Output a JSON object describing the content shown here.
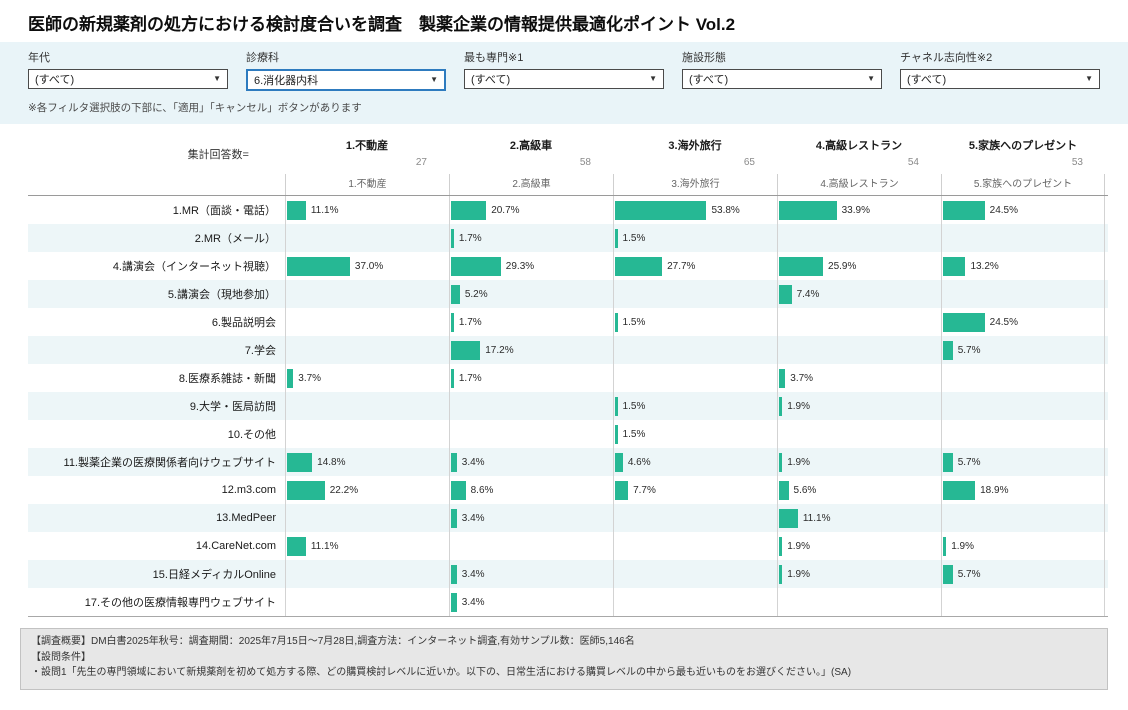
{
  "title": "医師の新規薬剤の処方における検討度合いを調査　製薬企業の情報提供最適化ポイント Vol.2",
  "filters": [
    {
      "label": "年代",
      "value": "(すべて)",
      "active": false
    },
    {
      "label": "診療科",
      "value": "6.消化器内科",
      "active": true
    },
    {
      "label": "最も専門※1",
      "value": "(すべて)",
      "active": false
    },
    {
      "label": "施設形態",
      "value": "(すべて)",
      "active": false
    },
    {
      "label": "チャネル志向性※2",
      "value": "(すべて)",
      "active": false
    }
  ],
  "filters_note": "※各フィルタ選択肢の下部に、「適用」「キャンセル」ボタンがあります",
  "chart_data": {
    "type": "bar",
    "orientation": "horizontal",
    "unit": "%",
    "agg_label": "集計回答数=",
    "xmax": 95,
    "columns": [
      {
        "name": "1.不動産",
        "count": 27
      },
      {
        "name": "2.高級車",
        "count": 58
      },
      {
        "name": "3.海外旅行",
        "count": 65
      },
      {
        "name": "4.高級レストラン",
        "count": 54
      },
      {
        "name": "5.家族へのプレゼント",
        "count": 53
      }
    ],
    "rows": [
      {
        "label": "1.MR（面談・電話）",
        "values": [
          11.1,
          20.7,
          53.8,
          33.9,
          24.5
        ]
      },
      {
        "label": "2.MR（メール）",
        "values": [
          null,
          1.7,
          1.5,
          null,
          null
        ]
      },
      {
        "label": "4.講演会（インターネット視聴）",
        "values": [
          37.0,
          29.3,
          27.7,
          25.9,
          13.2
        ]
      },
      {
        "label": "5.講演会（現地参加）",
        "values": [
          null,
          5.2,
          null,
          7.4,
          null
        ]
      },
      {
        "label": "6.製品説明会",
        "values": [
          null,
          1.7,
          1.5,
          null,
          24.5
        ]
      },
      {
        "label": "7.学会",
        "values": [
          null,
          17.2,
          null,
          null,
          5.7
        ]
      },
      {
        "label": "8.医療系雑誌・新聞",
        "values": [
          3.7,
          1.7,
          null,
          3.7,
          null
        ]
      },
      {
        "label": "9.大学・医局訪問",
        "values": [
          null,
          null,
          1.5,
          1.9,
          null
        ]
      },
      {
        "label": "10.その他",
        "values": [
          null,
          null,
          1.5,
          null,
          null
        ]
      },
      {
        "label": "11.製薬企業の医療関係者向けウェブサイト",
        "values": [
          14.8,
          3.4,
          4.6,
          1.9,
          5.7
        ]
      },
      {
        "label": "12.m3.com",
        "values": [
          22.2,
          8.6,
          7.7,
          5.6,
          18.9
        ]
      },
      {
        "label": "13.MedPeer",
        "values": [
          null,
          3.4,
          null,
          11.1,
          null
        ]
      },
      {
        "label": "14.CareNet.com",
        "values": [
          11.1,
          null,
          null,
          1.9,
          1.9
        ]
      },
      {
        "label": "15.日経メディカルOnline",
        "values": [
          null,
          3.4,
          null,
          1.9,
          5.7
        ]
      },
      {
        "label": "17.その他の医療情報専門ウェブサイト",
        "values": [
          null,
          3.4,
          null,
          null,
          null
        ]
      }
    ]
  },
  "footer": {
    "lines": [
      "【調査概要】DM白書2025年秋号：調査期間：2025年7月15日～7月28日,調査方法：インターネット調査,有効サンプル数：医師5,146名",
      "【設問条件】",
      "・設問1「先生の専門領域において新規薬剤を初めて処方する際、どの購買検討レベルに近いか。以下の、日常生活における購買レベルの中から最も近いものをお選びください。」(SA)"
    ]
  },
  "colors": {
    "bar": "#26b894",
    "filter_active_border": "#2e7bbf",
    "alt_row": "#edf6f8",
    "filter_bg": "#e9f4f8"
  }
}
